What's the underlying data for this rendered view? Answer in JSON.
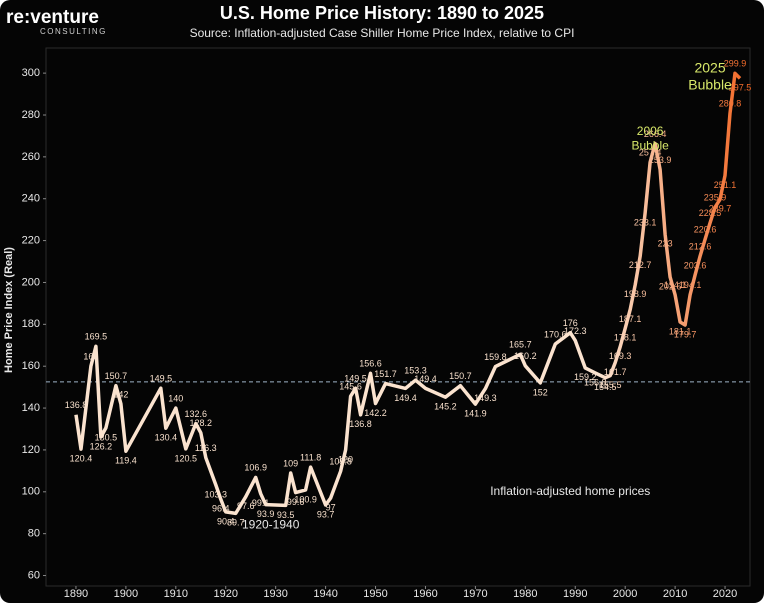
{
  "chart_data": {
    "type": "line",
    "title": "U.S. Home Price History: 1890 to 2025",
    "subtitle": "Source: Inflation-adjusted Case Shiller Home Price Index, relative to CPI",
    "logo": "re:venture",
    "logo_sub": "CONSULTING",
    "y_label": "Home Price Index (Real)",
    "xlim": [
      1884,
      2025
    ],
    "ylim": [
      55,
      312
    ],
    "xticks": [
      1890,
      1900,
      1910,
      1920,
      1930,
      1940,
      1950,
      1960,
      1970,
      1980,
      1990,
      2000,
      2010,
      2020
    ],
    "yticks": [
      60,
      80,
      100,
      120,
      140,
      160,
      180,
      200,
      220,
      240,
      260,
      280,
      300
    ],
    "reference_line": 152.5,
    "series": [
      {
        "name": "Inflation-adjusted home prices",
        "colors": [
          "#fbe3cf",
          "#f26522"
        ],
        "x": [
          1890,
          1891,
          1893,
          1894,
          1895,
          1896,
          1898,
          1899,
          1900,
          1907,
          1908,
          1910,
          1912,
          1914,
          1915,
          1916,
          1918,
          1919,
          1920,
          1922,
          1924,
          1926,
          1927,
          1928,
          1932,
          1933,
          1934,
          1936,
          1937,
          1940,
          1941,
          1943,
          1944,
          1945,
          1946,
          1947,
          1949,
          1950,
          1952,
          1956,
          1958,
          1960,
          1964,
          1967,
          1970,
          1972,
          1974,
          1979,
          1980,
          1983,
          1986,
          1989,
          1990,
          1992,
          1994,
          1996,
          1997,
          1998,
          1999,
          2000,
          2001,
          2002,
          2003,
          2004,
          2005,
          2006,
          2007,
          2008,
          2009,
          2010,
          2011,
          2012,
          2013,
          2014,
          2015,
          2016,
          2017,
          2018,
          2019,
          2020,
          2021,
          2022,
          2023
        ],
        "values": [
          136.8,
          120.4,
          160.0,
          169.5,
          126.2,
          130.5,
          150.7,
          142.0,
          119.4,
          149.5,
          130.4,
          140.0,
          120.5,
          132.6,
          128.2,
          116.3,
          103.3,
          96.4,
          90.4,
          89.7,
          97.6,
          106.9,
          99.1,
          93.9,
          93.5,
          109.0,
          99.6,
          100.9,
          111.8,
          93.7,
          97.0,
          109.8,
          120.0,
          145.6,
          149.5,
          136.8,
          156.6,
          142.2,
          151.7,
          149.4,
          153.3,
          149.4,
          145.2,
          150.7,
          141.9,
          149.3,
          159.8,
          165.7,
          160.2,
          152.0,
          170.6,
          176.0,
          172.3,
          159.2,
          156.8,
          154.5,
          155.5,
          161.7,
          169.3,
          178.1,
          187.1,
          198.9,
          212.7,
          233.1,
          257.4,
          266.4,
          253.9,
          223.0,
          202.6,
          194.1,
          181.1,
          179.7,
          194.1,
          203.6,
          212.6,
          220.6,
          228.5,
          235.9,
          239.7,
          251.1,
          280.8,
          299.9,
          297.5
        ]
      }
    ],
    "annotations": [
      {
        "text": "2006",
        "x": 2005,
        "y": 272,
        "color": "#d8e86a"
      },
      {
        "text": "Bubble",
        "x": 2005,
        "y": 265,
        "color": "#d8e86a"
      },
      {
        "text": "2025",
        "x": 2017,
        "y": 302,
        "color": "#d8e86a"
      },
      {
        "text": "Bubble",
        "x": 2017,
        "y": 294,
        "color": "#d8e86a"
      },
      {
        "text": "1920-1940",
        "x": 1929,
        "y": 84,
        "color": "#e8e8e8"
      },
      {
        "text": "Inflation-adjusted home prices",
        "x": 1989,
        "y": 100,
        "color": "#e8e8e8"
      }
    ]
  }
}
